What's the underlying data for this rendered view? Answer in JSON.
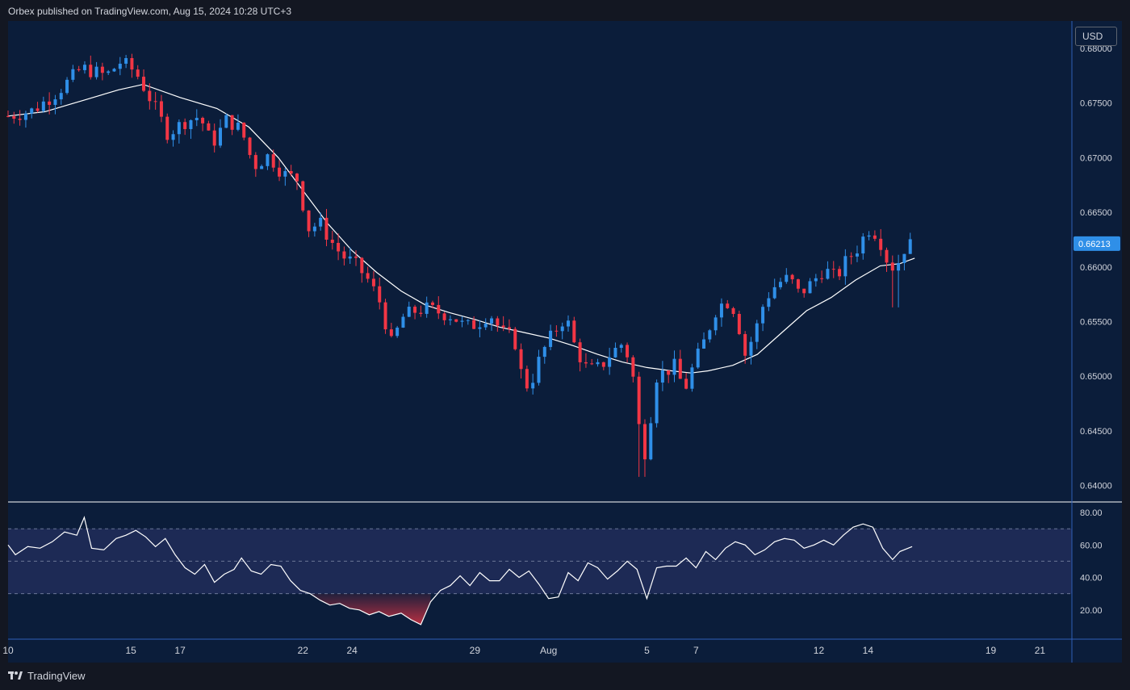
{
  "header": {
    "publisher_text": "Orbex published on TradingView.com, Aug 15, 2024 10:28 UTC+3"
  },
  "currency": "USD",
  "footer": {
    "brand": "TradingView"
  },
  "colors": {
    "background": "#0b1d3a",
    "bullish": "#2f8fe8",
    "bearish": "#f23645",
    "ma_line": "#ffffff",
    "rsi_line": "#ffffff",
    "rsi_band": "#1d2a55",
    "price_badge": "#2f8fe8",
    "divider": "#2f5fb8"
  },
  "chart_data": [
    {
      "type": "candlestick",
      "symbol_currency": "USD",
      "y_ticks": [
        "0.68000",
        "0.67500",
        "0.67000",
        "0.66500",
        "0.66000",
        "0.65500",
        "0.65000",
        "0.64500",
        "0.64000"
      ],
      "ylim": [
        0.6385,
        0.6825
      ],
      "last_price": "0.66213",
      "x_ticks": [
        {
          "label": "10",
          "day": 10
        },
        {
          "label": "15",
          "day": 15
        },
        {
          "label": "17",
          "day": 17
        },
        {
          "label": "22",
          "day": 22
        },
        {
          "label": "24",
          "day": 24
        },
        {
          "label": "29",
          "day": 29
        },
        {
          "label": "Aug",
          "day": 32
        },
        {
          "label": "5",
          "day": 36
        },
        {
          "label": "7",
          "day": 38
        },
        {
          "label": "12",
          "day": 43
        },
        {
          "label": "14",
          "day": 45
        },
        {
          "label": "19",
          "day": 50
        },
        {
          "label": "21",
          "day": 52
        }
      ],
      "x_start_day": 10,
      "x_end_day": 53.3,
      "close_path": [
        [
          10,
          0.6738
        ],
        [
          11,
          0.6743
        ],
        [
          12,
          0.676
        ],
        [
          13,
          0.6782
        ],
        [
          14,
          0.6775
        ],
        [
          14.6,
          0.6788
        ],
        [
          15.2,
          0.6778
        ],
        [
          16,
          0.6745
        ],
        [
          16.5,
          0.6722
        ],
        [
          17.2,
          0.6733
        ],
        [
          17.8,
          0.6738
        ],
        [
          18.3,
          0.6712
        ],
        [
          18.9,
          0.6735
        ],
        [
          19.5,
          0.6725
        ],
        [
          20,
          0.6692
        ],
        [
          20.6,
          0.6702
        ],
        [
          21.2,
          0.6685
        ],
        [
          21.8,
          0.668
        ],
        [
          22.2,
          0.6635
        ],
        [
          22.7,
          0.664
        ],
        [
          23.1,
          0.6625
        ],
        [
          23.6,
          0.661
        ],
        [
          24.1,
          0.6603
        ],
        [
          24.6,
          0.659
        ],
        [
          25.1,
          0.657
        ],
        [
          25.6,
          0.653
        ],
        [
          26.1,
          0.6555
        ],
        [
          26.6,
          0.656
        ],
        [
          27.1,
          0.6562
        ],
        [
          27.6,
          0.6558
        ],
        [
          28.1,
          0.6555
        ],
        [
          28.6,
          0.6545
        ],
        [
          29.1,
          0.6548
        ],
        [
          29.6,
          0.6558
        ],
        [
          30.1,
          0.654
        ],
        [
          30.6,
          0.6535
        ],
        [
          31,
          0.649
        ],
        [
          31.3,
          0.6495
        ],
        [
          31.7,
          0.652
        ],
        [
          32.2,
          0.654
        ],
        [
          32.7,
          0.6555
        ],
        [
          33.1,
          0.6525
        ],
        [
          33.6,
          0.6505
        ],
        [
          34.1,
          0.6508
        ],
        [
          34.5,
          0.652
        ],
        [
          35,
          0.653
        ],
        [
          35.3,
          0.6515
        ],
        [
          35.6,
          0.648
        ],
        [
          35.8,
          0.6415
        ],
        [
          36.1,
          0.6455
        ],
        [
          36.4,
          0.65
        ],
        [
          36.8,
          0.6505
        ],
        [
          37.2,
          0.651
        ],
        [
          37.5,
          0.6485
        ],
        [
          37.9,
          0.651
        ],
        [
          38.3,
          0.653
        ],
        [
          38.8,
          0.656
        ],
        [
          39.2,
          0.657
        ],
        [
          39.6,
          0.656
        ],
        [
          40,
          0.652
        ],
        [
          40.4,
          0.654
        ],
        [
          40.8,
          0.657
        ],
        [
          41.3,
          0.6585
        ],
        [
          41.8,
          0.659
        ],
        [
          42.2,
          0.6575
        ],
        [
          42.7,
          0.6585
        ],
        [
          43.2,
          0.6598
        ],
        [
          43.7,
          0.659
        ],
        [
          44.1,
          0.6605
        ],
        [
          44.6,
          0.6618
        ],
        [
          45,
          0.6635
        ],
        [
          45.4,
          0.663
        ],
        [
          45.8,
          0.6605
        ],
        [
          46.1,
          0.6598
        ],
        [
          46.5,
          0.6618
        ],
        [
          46.8,
          0.6621
        ]
      ],
      "ma_path": [
        [
          10,
          0.6738
        ],
        [
          11.5,
          0.6742
        ],
        [
          13,
          0.6752
        ],
        [
          14.5,
          0.6762
        ],
        [
          15.5,
          0.6767
        ],
        [
          17,
          0.6755
        ],
        [
          18.5,
          0.6745
        ],
        [
          19.8,
          0.6728
        ],
        [
          21,
          0.67
        ],
        [
          22,
          0.667
        ],
        [
          23,
          0.664
        ],
        [
          24,
          0.6615
        ],
        [
          25,
          0.6595
        ],
        [
          26,
          0.6578
        ],
        [
          27,
          0.6565
        ],
        [
          28,
          0.6558
        ],
        [
          29,
          0.6552
        ],
        [
          30,
          0.6545
        ],
        [
          31,
          0.654
        ],
        [
          32,
          0.6535
        ],
        [
          33,
          0.6528
        ],
        [
          34,
          0.652
        ],
        [
          35,
          0.6513
        ],
        [
          36,
          0.6508
        ],
        [
          37,
          0.6505
        ],
        [
          37.8,
          0.6503
        ],
        [
          38.5,
          0.6505
        ],
        [
          39.5,
          0.651
        ],
        [
          40.5,
          0.652
        ],
        [
          41.5,
          0.654
        ],
        [
          42.5,
          0.656
        ],
        [
          43.5,
          0.6572
        ],
        [
          44.5,
          0.6588
        ],
        [
          45.5,
          0.6601
        ],
        [
          46.3,
          0.6603
        ],
        [
          46.9,
          0.6608
        ]
      ]
    },
    {
      "type": "line",
      "name": "",
      "y_ticks": [
        "80.00",
        "60.00",
        "40.00",
        "20.00"
      ],
      "ylim": [
        2,
        86
      ],
      "overbought": 70,
      "oversold": 30,
      "midline": 50,
      "x_start_day": 10,
      "x_end_day": 53.3,
      "values": [
        [
          10,
          60
        ],
        [
          10.3,
          54
        ],
        [
          10.8,
          59
        ],
        [
          11.3,
          58
        ],
        [
          11.8,
          62
        ],
        [
          12.3,
          68
        ],
        [
          12.8,
          66
        ],
        [
          13.1,
          77
        ],
        [
          13.4,
          58
        ],
        [
          13.9,
          57
        ],
        [
          14.4,
          64
        ],
        [
          14.8,
          66
        ],
        [
          15.2,
          69
        ],
        [
          15.6,
          65
        ],
        [
          16,
          59
        ],
        [
          16.4,
          64
        ],
        [
          16.8,
          54
        ],
        [
          17.2,
          46
        ],
        [
          17.6,
          42
        ],
        [
          18,
          48
        ],
        [
          18.4,
          37
        ],
        [
          18.8,
          42
        ],
        [
          19.2,
          45
        ],
        [
          19.5,
          52
        ],
        [
          19.9,
          44
        ],
        [
          20.3,
          42
        ],
        [
          20.7,
          48
        ],
        [
          21.1,
          47
        ],
        [
          21.5,
          38
        ],
        [
          21.9,
          32
        ],
        [
          22.3,
          30
        ],
        [
          22.7,
          26
        ],
        [
          23.1,
          23
        ],
        [
          23.5,
          24
        ],
        [
          23.9,
          21
        ],
        [
          24.3,
          20
        ],
        [
          24.7,
          17
        ],
        [
          25.1,
          19
        ],
        [
          25.5,
          16
        ],
        [
          26,
          18
        ],
        [
          26.4,
          14
        ],
        [
          26.8,
          11
        ],
        [
          27.2,
          25
        ],
        [
          27.6,
          32
        ],
        [
          28,
          35
        ],
        [
          28.4,
          41
        ],
        [
          28.8,
          35
        ],
        [
          29.2,
          43
        ],
        [
          29.6,
          38
        ],
        [
          30,
          38
        ],
        [
          30.4,
          45
        ],
        [
          30.8,
          40
        ],
        [
          31.2,
          44
        ],
        [
          31.6,
          36
        ],
        [
          32,
          27
        ],
        [
          32.4,
          28
        ],
        [
          32.8,
          43
        ],
        [
          33.2,
          38
        ],
        [
          33.6,
          49
        ],
        [
          34,
          46
        ],
        [
          34.4,
          39
        ],
        [
          34.8,
          44
        ],
        [
          35.2,
          50
        ],
        [
          35.6,
          45
        ],
        [
          36,
          27
        ],
        [
          36.4,
          46
        ],
        [
          36.8,
          47
        ],
        [
          37.2,
          47
        ],
        [
          37.6,
          52
        ],
        [
          38,
          46
        ],
        [
          38.4,
          56
        ],
        [
          38.8,
          51
        ],
        [
          39.2,
          58
        ],
        [
          39.6,
          62
        ],
        [
          40,
          60
        ],
        [
          40.4,
          54
        ],
        [
          40.8,
          57
        ],
        [
          41.2,
          62
        ],
        [
          41.6,
          64
        ],
        [
          42,
          63
        ],
        [
          42.4,
          58
        ],
        [
          42.8,
          60
        ],
        [
          43.2,
          63
        ],
        [
          43.6,
          60
        ],
        [
          44,
          66
        ],
        [
          44.4,
          71
        ],
        [
          44.8,
          73
        ],
        [
          45.2,
          71
        ],
        [
          45.6,
          58
        ],
        [
          46,
          51
        ],
        [
          46.3,
          56
        ],
        [
          46.8,
          59
        ]
      ]
    }
  ]
}
